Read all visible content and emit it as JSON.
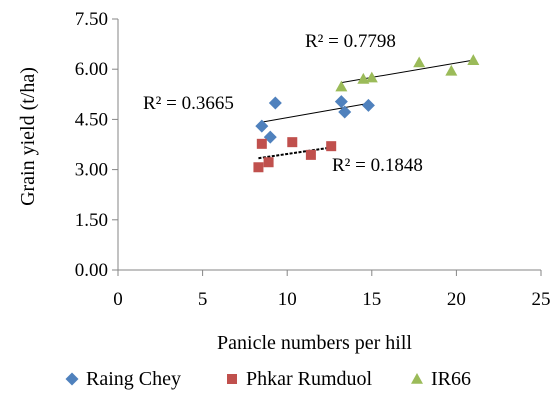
{
  "chart_data": {
    "type": "scatter",
    "xlabel": "Panicle numbers per hill",
    "ylabel": "Grain yield (t/ha)",
    "xlim": [
      0,
      25
    ],
    "ylim": [
      0,
      7.5
    ],
    "x_ticks": [
      {
        "value": 0,
        "label": "0"
      },
      {
        "value": 5,
        "label": "5"
      },
      {
        "value": 10,
        "label": "10"
      },
      {
        "value": 15,
        "label": "15"
      },
      {
        "value": 20,
        "label": "20"
      },
      {
        "value": 25,
        "label": "25"
      }
    ],
    "y_ticks": [
      {
        "value": 0,
        "label": "0.00"
      },
      {
        "value": 1.5,
        "label": "1.50"
      },
      {
        "value": 3,
        "label": "3.00"
      },
      {
        "value": 4.5,
        "label": "4.50"
      },
      {
        "value": 6,
        "label": "6.00"
      },
      {
        "value": 7.5,
        "label": "7.50"
      }
    ],
    "grid": false,
    "legend_position": "bottom",
    "series": [
      {
        "name": "Raing Chey",
        "color": "#4F81BD",
        "marker": "diamond",
        "points": [
          {
            "x": 8.5,
            "y": 4.3
          },
          {
            "x": 9.0,
            "y": 3.97
          },
          {
            "x": 9.3,
            "y": 4.99
          },
          {
            "x": 13.2,
            "y": 5.03
          },
          {
            "x": 13.4,
            "y": 4.72
          },
          {
            "x": 14.8,
            "y": 4.92
          }
        ],
        "trendline": {
          "x": [
            8.5,
            14.8
          ],
          "y": [
            4.42,
            4.98
          ]
        },
        "r2_label": "R² = 0.3665"
      },
      {
        "name": "Phkar Rumduol",
        "color": "#C0504D",
        "marker": "square",
        "points": [
          {
            "x": 8.3,
            "y": 3.07
          },
          {
            "x": 8.5,
            "y": 3.77
          },
          {
            "x": 8.9,
            "y": 3.22
          },
          {
            "x": 10.3,
            "y": 3.82
          },
          {
            "x": 11.4,
            "y": 3.44
          },
          {
            "x": 12.6,
            "y": 3.7
          }
        ],
        "trendline": {
          "x": [
            8.3,
            12.6
          ],
          "y": [
            3.34,
            3.66
          ]
        },
        "r2_label": "R² = 0.1848"
      },
      {
        "name": "IR66",
        "color": "#9BBB59",
        "marker": "triangle",
        "points": [
          {
            "x": 13.2,
            "y": 5.48
          },
          {
            "x": 14.5,
            "y": 5.71
          },
          {
            "x": 15.0,
            "y": 5.75
          },
          {
            "x": 17.8,
            "y": 6.2
          },
          {
            "x": 19.7,
            "y": 5.95
          },
          {
            "x": 21.0,
            "y": 6.27
          }
        ],
        "trendline": {
          "x": [
            13.2,
            21.0
          ],
          "y": [
            5.6,
            6.27
          ]
        },
        "r2_label": "R² = 0.7798"
      }
    ]
  }
}
